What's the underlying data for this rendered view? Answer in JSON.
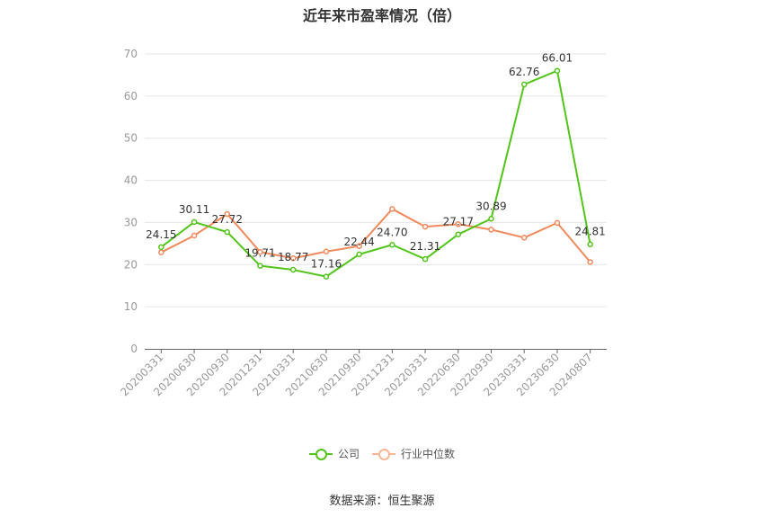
{
  "chart_data": {
    "type": "line",
    "title": "近年来市盈率情况（倍）",
    "categories": [
      "20200331",
      "20200630",
      "20200930",
      "20201231",
      "20210331",
      "20210630",
      "20210930",
      "20211231",
      "20220331",
      "20220630",
      "20220930",
      "20230331",
      "20230630",
      "20240807"
    ],
    "series": [
      {
        "name": "公司",
        "color": "#52c41a",
        "values": [
          24.15,
          30.11,
          27.72,
          19.71,
          18.77,
          17.16,
          22.44,
          24.7,
          21.31,
          27.17,
          30.89,
          62.76,
          66.01,
          24.81
        ],
        "labels": [
          "24.15",
          "30.11",
          "27.72",
          "19.71",
          "18.77",
          "17.16",
          "22.44",
          "24.70",
          "21.31",
          "27.17",
          "30.89",
          "62.76",
          "66.01",
          "24.81"
        ]
      },
      {
        "name": "行业中位数",
        "color": "#f08a5d",
        "values": [
          22.9,
          26.9,
          32.0,
          23.0,
          21.5,
          23.1,
          24.4,
          33.2,
          29.0,
          29.6,
          28.3,
          26.4,
          29.9,
          20.6
        ]
      }
    ],
    "ylim": [
      0,
      70
    ],
    "yticks": [
      "0",
      "10",
      "20",
      "30",
      "40",
      "50",
      "60",
      "70"
    ],
    "xlabel": "",
    "ylabel": "",
    "grid": true,
    "legend_position": "bottom"
  },
  "source": "数据来源：恒生聚源"
}
